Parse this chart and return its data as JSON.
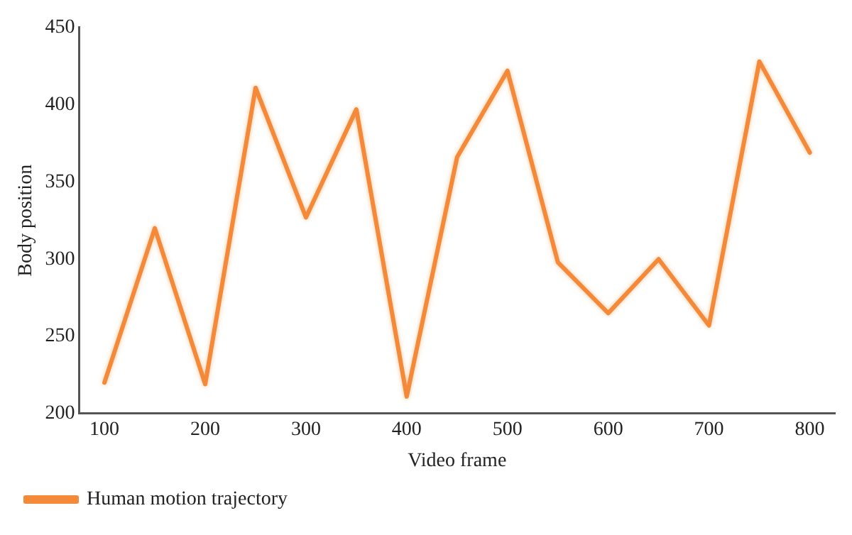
{
  "chart_data": {
    "type": "line",
    "xlabel": "Video frame",
    "ylabel": "Body position",
    "x": [
      100,
      150,
      200,
      250,
      300,
      350,
      400,
      450,
      500,
      550,
      600,
      650,
      700,
      750,
      800
    ],
    "series": [
      {
        "name": "Human motion trajectory",
        "color": "#f5893a",
        "values": [
          220,
          320,
          219,
          411,
          327,
          397,
          211,
          366,
          422,
          298,
          265,
          300,
          257,
          428,
          369
        ]
      }
    ],
    "xlim": [
      75,
      825
    ],
    "xticks": [
      100,
      200,
      300,
      400,
      500,
      600,
      700,
      800
    ],
    "ylim": [
      200,
      450
    ],
    "yticks": [
      200,
      250,
      300,
      350,
      400,
      450
    ],
    "grid": false,
    "legend": "bottom left",
    "marker": "none",
    "line_style": "solid"
  }
}
